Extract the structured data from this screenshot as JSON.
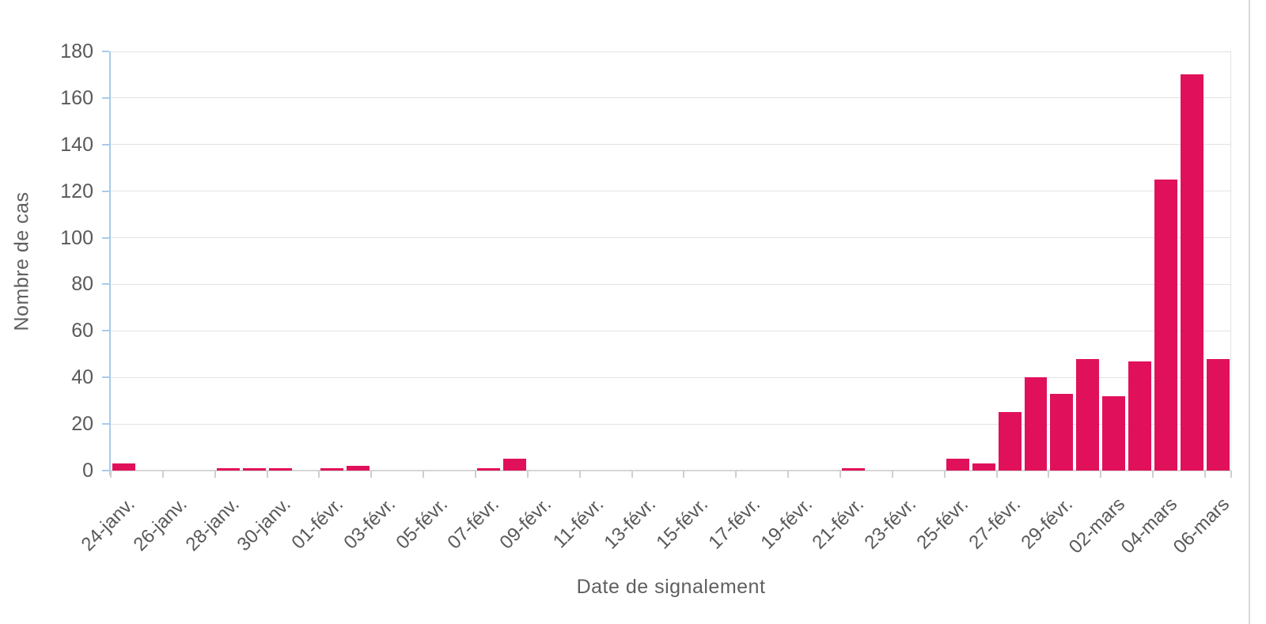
{
  "chart_data": {
    "type": "bar",
    "title": "",
    "xlabel": "Date de signalement",
    "ylabel": "Nombre de cas",
    "bar_color": "#e0115a",
    "ylim": [
      0,
      180
    ],
    "ytick_step": 20,
    "yticks": [
      0,
      20,
      40,
      60,
      80,
      100,
      120,
      140,
      160,
      180
    ],
    "grid": "horizontal",
    "legend": "none",
    "xtick_label_every": 2,
    "categories": [
      "24-janv.",
      "25-janv.",
      "26-janv.",
      "27-janv.",
      "28-janv.",
      "29-janv.",
      "30-janv.",
      "31-janv.",
      "01-févr.",
      "02-févr.",
      "03-févr.",
      "04-févr.",
      "05-févr.",
      "06-févr.",
      "07-févr.",
      "08-févr.",
      "09-févr.",
      "10-févr.",
      "11-févr.",
      "12-févr.",
      "13-févr.",
      "14-févr.",
      "15-févr.",
      "16-févr.",
      "17-févr.",
      "18-févr.",
      "19-févr.",
      "20-févr.",
      "21-févr.",
      "22-févr.",
      "23-févr.",
      "24-févr.",
      "25-févr.",
      "26-févr.",
      "27-févr.",
      "28-févr.",
      "29-févr.",
      "01-mars",
      "02-mars",
      "03-mars",
      "04-mars",
      "05-mars",
      "06-mars"
    ],
    "values": [
      3,
      0,
      0,
      0,
      1,
      1,
      1,
      0,
      1,
      2,
      0,
      0,
      0,
      0,
      1,
      5,
      0,
      0,
      0,
      0,
      0,
      0,
      0,
      0,
      0,
      0,
      0,
      0,
      1,
      0,
      0,
      0,
      5,
      3,
      25,
      40,
      33,
      48,
      32,
      47,
      125,
      170,
      48
    ],
    "visible_xtick_labels": [
      "24-janv.",
      "26-janv.",
      "28-janv.",
      "30-janv.",
      "01-févr.",
      "03-févr.",
      "05-févr.",
      "07-févr.",
      "09-févr.",
      "11-févr.",
      "13-févr.",
      "15-févr.",
      "17-févr.",
      "19-févr.",
      "21-févr.",
      "23-févr.",
      "25-févr.",
      "27-févr.",
      "29-févr.",
      "02-mars",
      "04-mars",
      "06-mars"
    ],
    "colors": {
      "gridline": "#e3e3e3",
      "y_axis": "#a9cbe9",
      "x_axis": "#d6d6d6",
      "tick_label": "#595959",
      "axis_title": "#5f5f5f",
      "background": "#ffffff"
    }
  }
}
